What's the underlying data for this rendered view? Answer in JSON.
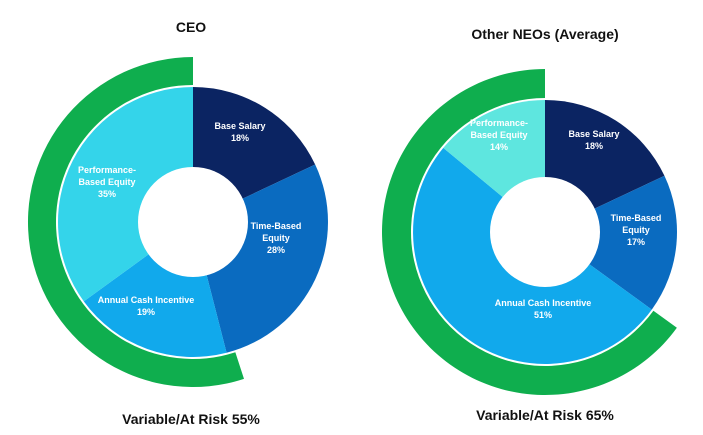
{
  "colors": {
    "base_salary": "#0b2462",
    "time_based": "#0a6bc0",
    "annual_cash": "#11a9ec",
    "performance_based": "#34d4ea",
    "performance_based_light": "#5ee6df",
    "variable_band": "#0fae4e",
    "label_on_dark": "#ffffff",
    "label_on_light": "#ffffff"
  },
  "chart_data": [
    {
      "type": "pie",
      "variant": "donut",
      "title": "CEO",
      "slices": [
        {
          "name": "Base Salary",
          "label_lines": [
            "Base Salary"
          ],
          "value": 18,
          "display": "18%",
          "color_key": "base_salary"
        },
        {
          "name": "Time-Based Equity",
          "label_lines": [
            "Time-Based",
            "Equity"
          ],
          "value": 28,
          "display": "28%",
          "color_key": "time_based"
        },
        {
          "name": "Annual Cash Incentive",
          "label_lines": [
            "Annual Cash Incentive"
          ],
          "value": 19,
          "display": "19%",
          "color_key": "annual_cash"
        },
        {
          "name": "Performance-Based Equity",
          "label_lines": [
            "Performance-",
            "Based Equity"
          ],
          "value": 35,
          "display": "35%",
          "color_key": "performance_based"
        }
      ],
      "variable_band": {
        "label": "Variable/At Risk 55%",
        "value": 55
      }
    },
    {
      "type": "pie",
      "variant": "donut",
      "title": "Other NEOs (Average)",
      "slices": [
        {
          "name": "Base Salary",
          "label_lines": [
            "Base Salary"
          ],
          "value": 18,
          "display": "18%",
          "color_key": "base_salary"
        },
        {
          "name": "Time-Based Equity",
          "label_lines": [
            "Time-Based",
            "Equity"
          ],
          "value": 17,
          "display": "17%",
          "color_key": "time_based"
        },
        {
          "name": "Annual Cash Incentive",
          "label_lines": [
            "Annual Cash Incentive"
          ],
          "value": 51,
          "display": "51%",
          "color_key": "annual_cash"
        },
        {
          "name": "Performance-Based Equity",
          "label_lines": [
            "Performance-",
            "Based Equity"
          ],
          "value": 14,
          "display": "14%",
          "color_key": "performance_based_light"
        }
      ],
      "variable_band": {
        "label": "Variable/At Risk 65%",
        "value": 65
      }
    }
  ]
}
